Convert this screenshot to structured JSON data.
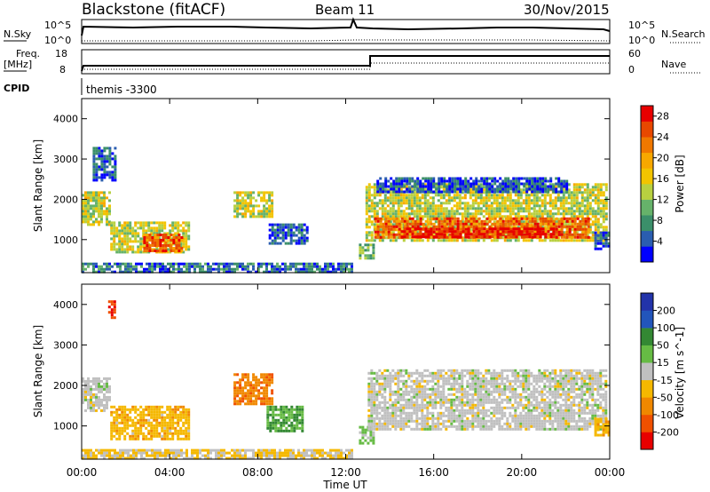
{
  "header": {
    "station": "Blackstone (fitACF)",
    "beam": "Beam 11",
    "date": "30/Nov/2015"
  },
  "panels": {
    "nsky": {
      "label": "N.Sky",
      "top_tick": "10^5",
      "bottom_tick": "10^0",
      "right_label": "N.Search"
    },
    "freq": {
      "label_line1": "Freq.",
      "label_line2": "[MHz]",
      "top_tick": "18",
      "bottom_tick": "8",
      "right_top_tick": "60",
      "right_bottom_tick": "0",
      "right_label": "Nave"
    },
    "cpid": {
      "label": "CPID",
      "value": "themis -3300"
    }
  },
  "chart_data": [
    {
      "type": "heatmap",
      "name": "power",
      "xlabel": "Time UT",
      "ylabel": "Slant Range [km]",
      "x_ticks": [
        "00:00",
        "04:00",
        "08:00",
        "12:00",
        "16:00",
        "20:00",
        "00:00"
      ],
      "x_range_hours": [
        0,
        24
      ],
      "y_ticks": [
        1000,
        2000,
        3000,
        4000
      ],
      "ylim": [
        180,
        4500
      ],
      "colorbar": {
        "label": "Power [dB]",
        "ticks": [
          "4",
          "8",
          "12",
          "16",
          "20",
          "24",
          "28"
        ],
        "range": [
          0,
          30
        ],
        "colors": [
          "#0000ff",
          "#2a5db0",
          "#3b8f6a",
          "#66b26a",
          "#b8d040",
          "#f2c400",
          "#f7a800",
          "#f07800",
          "#e84800",
          "#e80000"
        ]
      },
      "regions": [
        {
          "t": [
            0.0,
            1.3
          ],
          "r": [
            1350,
            2200
          ],
          "p": 14
        },
        {
          "t": [
            0.5,
            1.5
          ],
          "r": [
            2500,
            3300
          ],
          "p": 4
        },
        {
          "t": [
            1.3,
            4.9
          ],
          "r": [
            700,
            1450
          ],
          "p": 14
        },
        {
          "t": [
            2.8,
            4.6
          ],
          "r": [
            750,
            1150
          ],
          "p": 24
        },
        {
          "t": [
            6.9,
            8.6
          ],
          "r": [
            1550,
            2200
          ],
          "p": 14
        },
        {
          "t": [
            8.5,
            10.3
          ],
          "r": [
            900,
            1400
          ],
          "p": 4
        },
        {
          "t": [
            12.6,
            13.3
          ],
          "r": [
            550,
            900
          ],
          "p": 10
        },
        {
          "t": [
            12.9,
            23.8
          ],
          "r": [
            950,
            2400
          ],
          "p": 14
        },
        {
          "t": [
            13.3,
            23.0
          ],
          "r": [
            1050,
            1550
          ],
          "p": 24
        },
        {
          "t": [
            14.5,
            21.5
          ],
          "r": [
            1080,
            1300
          ],
          "p": 29
        },
        {
          "t": [
            13.4,
            22.0
          ],
          "r": [
            2200,
            2550
          ],
          "p": 4
        },
        {
          "t": [
            23.3,
            24.0
          ],
          "r": [
            750,
            1200
          ],
          "p": 4
        },
        {
          "t": [
            0.0,
            12.3
          ],
          "r": [
            180,
            430
          ],
          "p": 6
        }
      ]
    },
    {
      "type": "heatmap",
      "name": "velocity",
      "xlabel": "Time UT",
      "ylabel": "Slant Range [km]",
      "x_ticks": [
        "00:00",
        "04:00",
        "08:00",
        "12:00",
        "16:00",
        "20:00",
        "00:00"
      ],
      "x_range_hours": [
        0,
        24
      ],
      "y_ticks": [
        1000,
        2000,
        3000,
        4000
      ],
      "ylim": [
        180,
        4500
      ],
      "colorbar": {
        "label": "Velocity [m s^-1]",
        "ticks": [
          "200",
          "100",
          "50",
          "15",
          "-15",
          "-50",
          "-100",
          "-200"
        ],
        "range": [
          -250,
          250
        ],
        "colors": [
          "#e80000",
          "#f05000",
          "#f08800",
          "#f5b800",
          "#c0c0c0",
          "#66bb44",
          "#338833",
          "#2255bb",
          "#2233aa"
        ]
      },
      "regions": [
        {
          "t": [
            0.0,
            1.3
          ],
          "r": [
            1350,
            2200
          ],
          "v": 0
        },
        {
          "t": [
            1.2,
            1.5
          ],
          "r": [
            3700,
            4100
          ],
          "v": -200
        },
        {
          "t": [
            1.3,
            4.9
          ],
          "r": [
            700,
            1500
          ],
          "v": -60
        },
        {
          "t": [
            6.9,
            8.6
          ],
          "r": [
            1550,
            2300
          ],
          "v": -120
        },
        {
          "t": [
            8.4,
            10.0
          ],
          "r": [
            900,
            1500
          ],
          "v": 80
        },
        {
          "t": [
            12.6,
            13.3
          ],
          "r": [
            550,
            1000
          ],
          "v": 40
        },
        {
          "t": [
            13.0,
            23.8
          ],
          "r": [
            950,
            2400
          ],
          "v": 0
        },
        {
          "t": [
            23.3,
            24.0
          ],
          "r": [
            750,
            1200
          ],
          "v": -60
        },
        {
          "t": [
            0.0,
            12.3
          ],
          "r": [
            180,
            430
          ],
          "v": -30
        }
      ]
    }
  ]
}
